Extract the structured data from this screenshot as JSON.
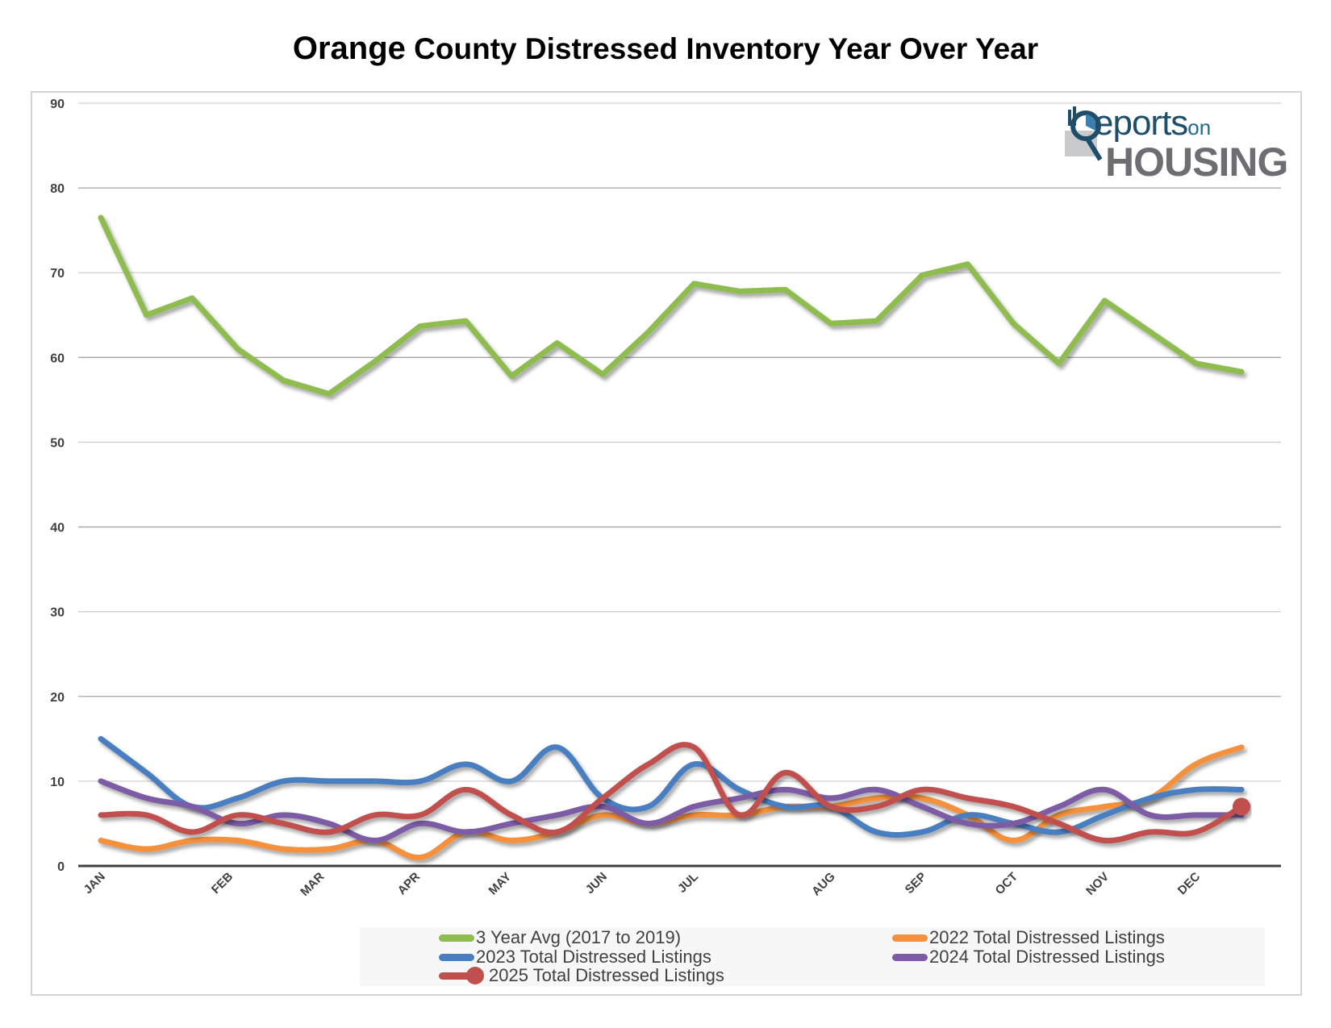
{
  "title": {
    "part1": "Orange",
    "part2": " County Distressed Inventory Year Over Year"
  },
  "logo": {
    "line1": "eports",
    "line1_suffix": "on",
    "line2": "HOUSING",
    "initial": "R"
  },
  "chart_data": {
    "type": "line",
    "title": "Orange County Distressed Inventory Year Over Year",
    "xlabel": "",
    "ylabel": "",
    "ylim": [
      0,
      90
    ],
    "yticks": [
      0,
      10,
      20,
      30,
      40,
      50,
      60,
      70,
      80,
      90
    ],
    "grid": true,
    "legend_position": "bottom",
    "x_points": 26,
    "month_labels": [
      {
        "label": "JAN",
        "at": 0
      },
      {
        "label": "FEB",
        "at": 2.8
      },
      {
        "label": "MAR",
        "at": 4.8
      },
      {
        "label": "APR",
        "at": 6.9
      },
      {
        "label": "MAY",
        "at": 8.9
      },
      {
        "label": "JUN",
        "at": 11
      },
      {
        "label": "JUL",
        "at": 13
      },
      {
        "label": "AUG",
        "at": 16
      },
      {
        "label": "SEP",
        "at": 18
      },
      {
        "label": "OCT",
        "at": 20
      },
      {
        "label": "NOV",
        "at": 22
      },
      {
        "label": "DEC",
        "at": 24
      }
    ],
    "series": [
      {
        "name": "3 Year Avg (2017 to 2019)",
        "color": "#8fbc4f",
        "smooth": false,
        "values": [
          76.5,
          65,
          67,
          61,
          57.3,
          55.7,
          59.5,
          63.7,
          64.3,
          57.8,
          61.7,
          58,
          63,
          68.7,
          67.8,
          68,
          64,
          64.3,
          69.7,
          71,
          64,
          59.3,
          66.7,
          63,
          59.3,
          58.3
        ]
      },
      {
        "name": "2022 Total Distressed Listings",
        "color": "#f5913e",
        "smooth": true,
        "values": [
          3,
          2,
          3,
          3,
          2,
          2,
          3,
          1,
          4,
          3,
          4,
          6,
          5,
          6,
          6,
          7,
          7,
          8,
          8,
          6,
          3,
          6,
          7,
          8,
          12,
          14
        ]
      },
      {
        "name": "2023 Total Distressed Listings",
        "color": "#4a7fc1",
        "smooth": true,
        "values": [
          15,
          11,
          7,
          8,
          10,
          10,
          10,
          10,
          12,
          10,
          14,
          8,
          7,
          12,
          9,
          7,
          7,
          4,
          4,
          6,
          5,
          4,
          6,
          8,
          9,
          9
        ]
      },
      {
        "name": "2024 Total Distressed Listings",
        "color": "#7d5ba6",
        "smooth": true,
        "values": [
          10,
          8,
          7,
          5,
          6,
          5,
          3,
          5,
          4,
          5,
          6,
          7,
          5,
          7,
          8,
          9,
          8,
          9,
          7,
          5,
          5,
          7,
          9,
          6,
          6,
          6
        ]
      },
      {
        "name": "2025 Total Distressed Listings",
        "color": "#c0504d",
        "smooth": true,
        "end_marker": true,
        "values": [
          6,
          6,
          4,
          6,
          5,
          4,
          6,
          6,
          9,
          6,
          4,
          8,
          12,
          14,
          6,
          11,
          7,
          7,
          9,
          8,
          7,
          5,
          3,
          4,
          4,
          7
        ]
      }
    ]
  }
}
